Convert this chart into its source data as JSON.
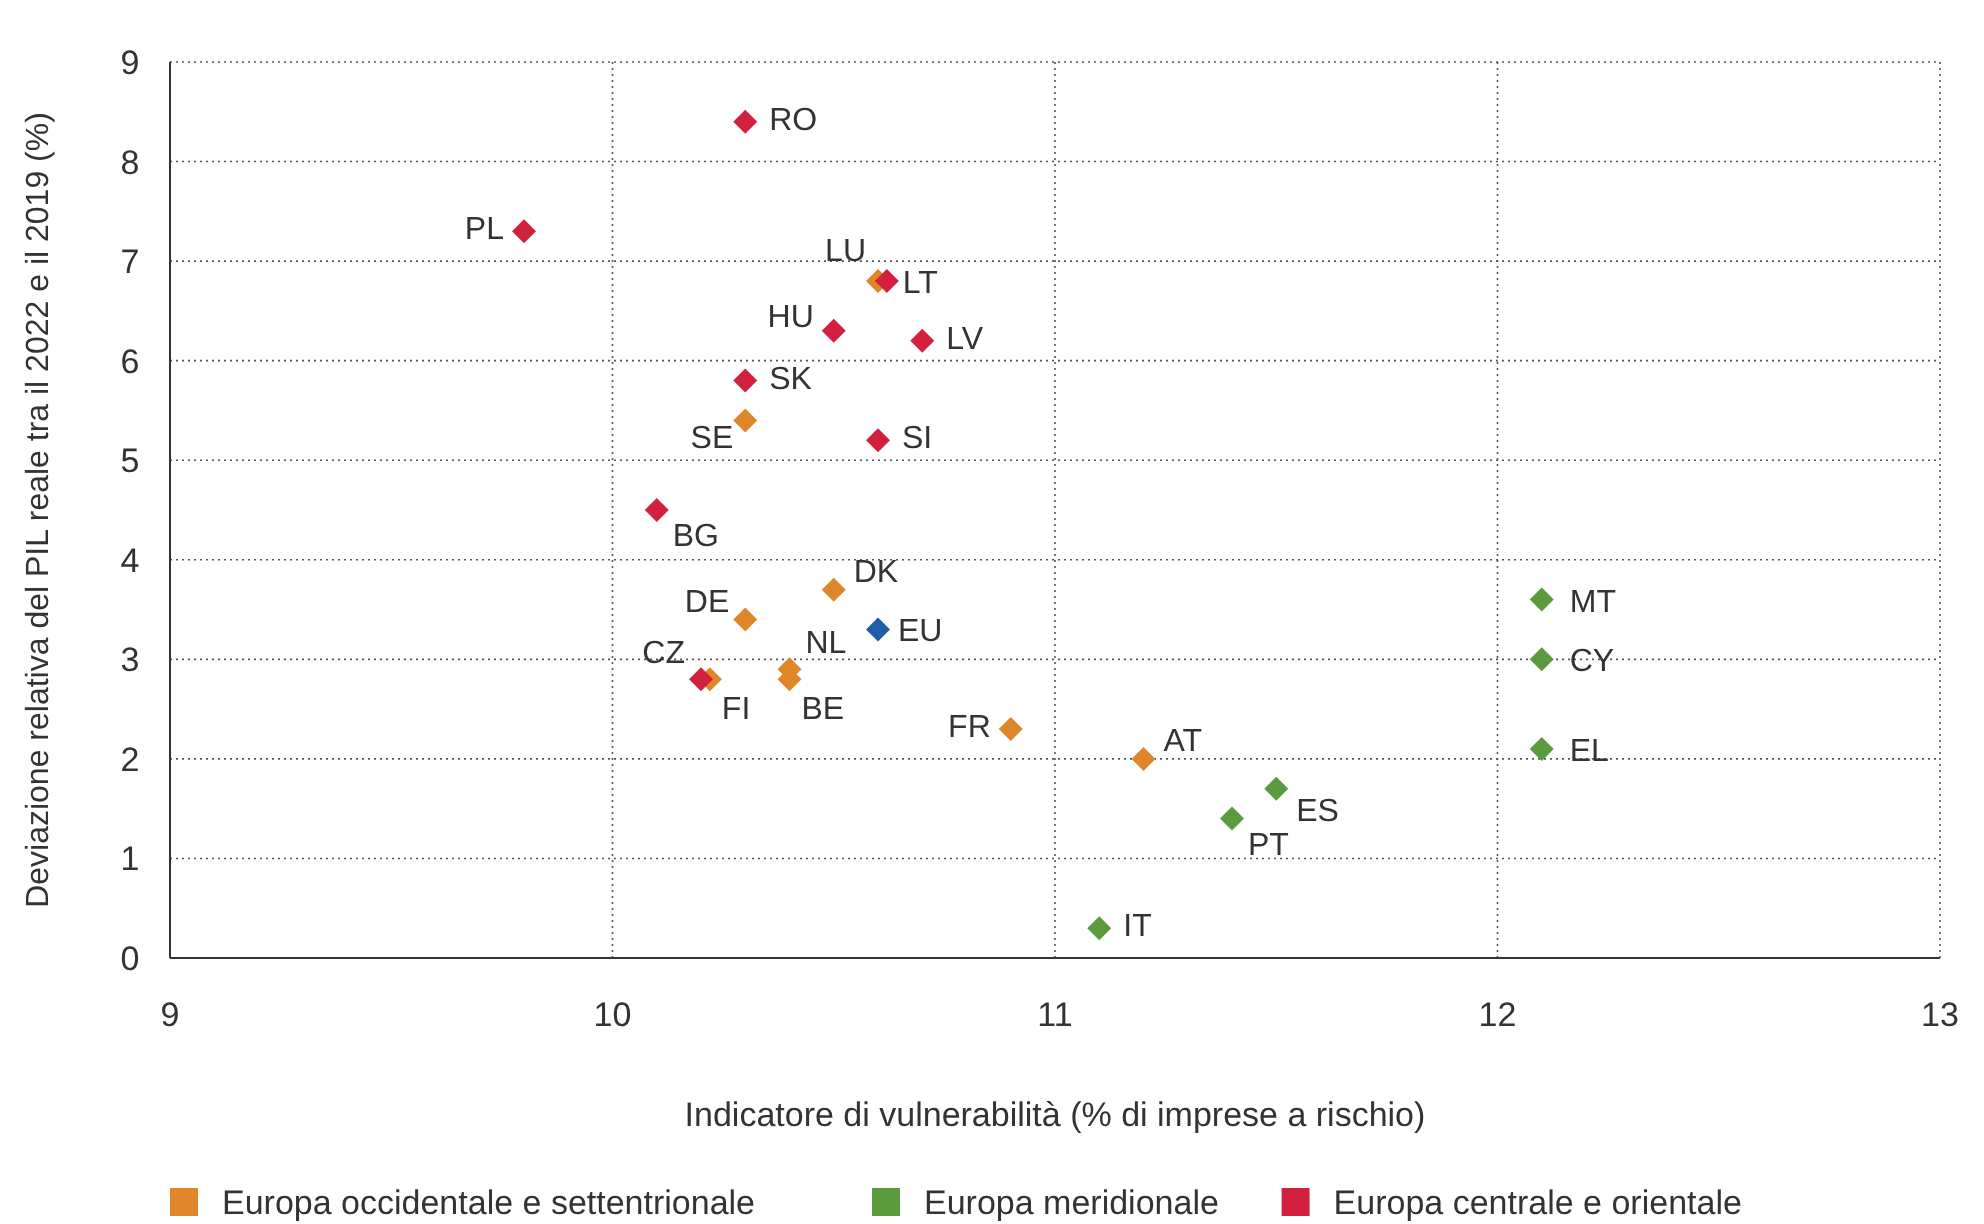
{
  "chart_data": {
    "type": "scatter",
    "xlabel": "Indicatore di vulnerabilità (% di imprese a rischio)",
    "ylabel": "Deviazione relativa del PIL reale tra il 2022 e il 2019 (%)",
    "xlim": [
      9,
      13
    ],
    "xticks": [
      9,
      10,
      11,
      12,
      13
    ],
    "ylim": [
      0,
      9
    ],
    "yticks": [
      0,
      1,
      2,
      3,
      4,
      5,
      6,
      7,
      8,
      9
    ],
    "grid": true,
    "legend": "bottom",
    "marker": "diamond",
    "series": [
      {
        "name": "Europa occidentale e settentrionale",
        "color": "#e0862a",
        "x": [
          10.6,
          10.3,
          10.5,
          10.3,
          10.4,
          10.22,
          10.4,
          10.9,
          11.2
        ],
        "values": [
          6.8,
          5.4,
          3.7,
          3.4,
          2.9,
          2.8,
          2.8,
          2.3,
          2.0
        ]
      },
      {
        "name": "Europa meridionale",
        "color": "#5b9a3d",
        "x": [
          12.1,
          12.1,
          12.1,
          11.5,
          11.4,
          11.1
        ],
        "values": [
          3.6,
          3.0,
          2.1,
          1.7,
          1.4,
          0.3
        ]
      },
      {
        "name": "Europa centrale e orientale",
        "color": "#d2213f",
        "x": [
          10.3,
          9.8,
          10.62,
          10.5,
          10.7,
          10.3,
          10.6,
          10.1,
          10.2
        ],
        "values": [
          8.4,
          7.3,
          6.8,
          6.3,
          6.2,
          5.8,
          5.2,
          4.5,
          2.8
        ]
      },
      {
        "color": "#1f5ea8",
        "x": [
          10.6
        ],
        "values": [
          3.3
        ]
      }
    ],
    "annotations": [
      {
        "text": "LU",
        "x": 10.6,
        "y": 6.8
      },
      {
        "text": "SE",
        "x": 10.3,
        "y": 5.4
      },
      {
        "text": "DK",
        "x": 10.5,
        "y": 3.7
      },
      {
        "text": "DE",
        "x": 10.3,
        "y": 3.4
      },
      {
        "text": "NL",
        "x": 10.4,
        "y": 2.9
      },
      {
        "text": "FI",
        "x": 10.22,
        "y": 2.8
      },
      {
        "text": "BE",
        "x": 10.4,
        "y": 2.8
      },
      {
        "text": "FR",
        "x": 10.9,
        "y": 2.3
      },
      {
        "text": "AT",
        "x": 11.2,
        "y": 2.0
      },
      {
        "text": "MT",
        "x": 12.1,
        "y": 3.6
      },
      {
        "text": "CY",
        "x": 12.1,
        "y": 3.0
      },
      {
        "text": "EL",
        "x": 12.1,
        "y": 2.1
      },
      {
        "text": "ES",
        "x": 11.5,
        "y": 1.7
      },
      {
        "text": "PT",
        "x": 11.4,
        "y": 1.4
      },
      {
        "text": "IT",
        "x": 11.1,
        "y": 0.3
      },
      {
        "text": "RO",
        "x": 10.3,
        "y": 8.4
      },
      {
        "text": "PL",
        "x": 9.8,
        "y": 7.3
      },
      {
        "text": "LT",
        "x": 10.62,
        "y": 6.8
      },
      {
        "text": "HU",
        "x": 10.5,
        "y": 6.3
      },
      {
        "text": "LV",
        "x": 10.7,
        "y": 6.2
      },
      {
        "text": "SK",
        "x": 10.3,
        "y": 5.8
      },
      {
        "text": "SI",
        "x": 10.6,
        "y": 5.2
      },
      {
        "text": "BG",
        "x": 10.1,
        "y": 4.5
      },
      {
        "text": "CZ",
        "x": 10.2,
        "y": 2.8
      },
      {
        "text": "EU",
        "x": 10.6,
        "y": 3.3
      }
    ]
  }
}
